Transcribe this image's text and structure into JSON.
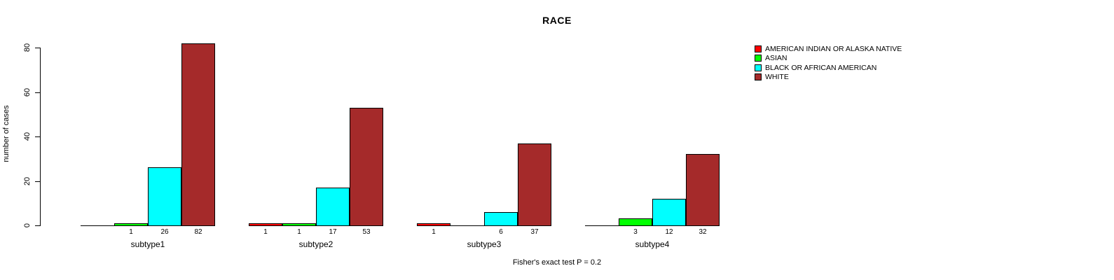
{
  "title": "RACE",
  "footer": "Fisher's exact test P = 0.2",
  "chart_data": {
    "type": "bar",
    "grouped": true,
    "title": "RACE",
    "xlabel": "",
    "ylabel": "number of cases",
    "categories": [
      "subtype1",
      "subtype2",
      "subtype3",
      "subtype4"
    ],
    "series": [
      {
        "name": "AMERICAN INDIAN OR ALASKA NATIVE",
        "color": "#FF0000",
        "values": [
          0,
          1,
          1,
          0
        ]
      },
      {
        "name": "ASIAN",
        "color": "#00FF00",
        "values": [
          1,
          1,
          0,
          3
        ]
      },
      {
        "name": "BLACK OR AFRICAN AMERICAN",
        "color": "#00FFFF",
        "values": [
          26,
          17,
          6,
          12
        ]
      },
      {
        "name": "WHITE",
        "color": "#A52A2A",
        "values": [
          82,
          53,
          37,
          32
        ]
      }
    ],
    "bar_value_labels": {
      "subtype1": [
        null,
        "1",
        "26",
        "82"
      ],
      "subtype2": [
        "1",
        "1",
        "17",
        "53"
      ],
      "subtype3": [
        "1",
        null,
        "6",
        "37"
      ],
      "subtype4": [
        null,
        "3",
        "12",
        "32"
      ]
    },
    "yticks": [
      0,
      20,
      40,
      60,
      80
    ],
    "ylim": [
      0,
      85
    ],
    "grid": false,
    "legend_position": "top-right",
    "annotation": "Fisher's exact test P = 0.2"
  }
}
